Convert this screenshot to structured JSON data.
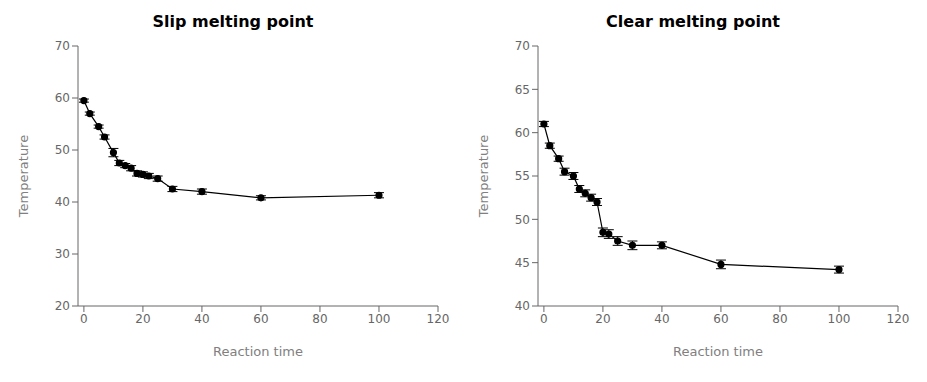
{
  "chart_data": [
    {
      "type": "line",
      "title": "Slip melting point",
      "xlabel": "Reaction time",
      "ylabel": "Temperature",
      "x": [
        0,
        2,
        5,
        7,
        10,
        12,
        14,
        16,
        18,
        20,
        22,
        25,
        30,
        40,
        60,
        100
      ],
      "values": [
        59.5,
        57.0,
        54.5,
        52.5,
        49.5,
        47.5,
        47.0,
        46.5,
        45.5,
        45.3,
        45.0,
        44.5,
        42.5,
        42.0,
        40.8,
        41.3
      ],
      "error": [
        0.3,
        0.3,
        0.3,
        0.4,
        0.8,
        0.5,
        0.4,
        0.5,
        0.5,
        0.5,
        0.5,
        0.5,
        0.5,
        0.5,
        0.4,
        0.5
      ],
      "color": "#000000",
      "marker": "circle",
      "xlim": [
        -2,
        120
      ],
      "xticks": [
        0,
        20,
        40,
        60,
        80,
        100,
        120
      ],
      "ylim": [
        20,
        70
      ],
      "yticks": [
        20,
        30,
        40,
        50,
        60,
        70
      ],
      "grid": false
    },
    {
      "type": "line",
      "title": "Clear melting point",
      "xlabel": "Reaction time",
      "ylabel": "Temperature",
      "x": [
        0,
        2,
        5,
        7,
        10,
        12,
        14,
        16,
        18,
        20,
        22,
        25,
        30,
        40,
        60,
        100
      ],
      "values": [
        61.0,
        58.5,
        57.0,
        55.5,
        55.0,
        53.5,
        53.0,
        52.5,
        52.0,
        48.5,
        48.3,
        47.5,
        47.0,
        47.0,
        44.8,
        44.2
      ],
      "error": [
        0.3,
        0.3,
        0.3,
        0.4,
        0.4,
        0.4,
        0.4,
        0.4,
        0.4,
        0.5,
        0.5,
        0.5,
        0.5,
        0.4,
        0.5,
        0.4
      ],
      "color": "#000000",
      "marker": "circle",
      "xlim": [
        -2,
        120
      ],
      "xticks": [
        0,
        20,
        40,
        60,
        80,
        100,
        120
      ],
      "ylim": [
        40,
        70
      ],
      "yticks": [
        40,
        45,
        50,
        55,
        60,
        65,
        70
      ],
      "grid": false
    }
  ]
}
